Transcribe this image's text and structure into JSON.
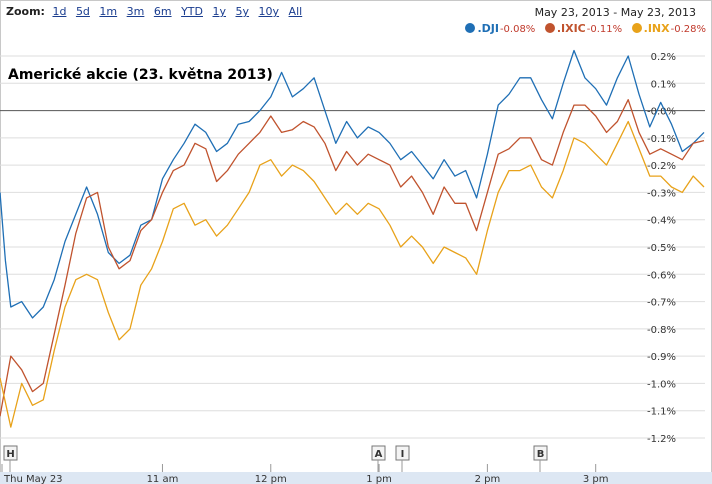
{
  "zoom": {
    "label": "Zoom:",
    "options": [
      "1d",
      "5d",
      "1m",
      "3m",
      "6m",
      "YTD",
      "1y",
      "5y",
      "10y",
      "All"
    ]
  },
  "date_range": "May 23, 2013  -  May 23, 2013",
  "legend": [
    {
      "symbol": ".DJI",
      "change": "-0.08%",
      "color": "#1f6fb5"
    },
    {
      "symbol": ".IXIC",
      "change": "-0.11%",
      "color": "#c0532e"
    },
    {
      "symbol": ".INX",
      "change": "-0.28%",
      "color": "#e8a21a"
    }
  ],
  "markers": [
    "H",
    "A",
    "I",
    "B"
  ],
  "chart_data": {
    "type": "line",
    "title": "Americké akcie (23. května 2013)",
    "x_tick_labels": [
      "Thu May 23",
      "11 am",
      "12 pm",
      "1 pm",
      "2 pm",
      "3 pm"
    ],
    "x_tick_hours": [
      10.0,
      11.0,
      12.0,
      13.0,
      14.0,
      15.0
    ],
    "x_range": [
      9.5,
      16.0
    ],
    "y_tick_labels": [
      "0.2%",
      "0.1%",
      "-0.0%",
      "-0.1%",
      "-0.2%",
      "-0.3%",
      "-0.4%",
      "-0.5%",
      "-0.6%",
      "-0.7%",
      "-0.8%",
      "-0.9%",
      "-1.0%",
      "-1.1%",
      "-1.2%"
    ],
    "y_ticks": [
      0.2,
      0.1,
      0.0,
      -0.1,
      -0.2,
      -0.3,
      -0.4,
      -0.5,
      -0.6,
      -0.7,
      -0.8,
      -0.9,
      -1.0,
      -1.1,
      -1.2
    ],
    "ylim": [
      -1.25,
      0.28
    ],
    "grid": true,
    "legend_position": "top-right",
    "series": [
      {
        "name": ".DJI",
        "color": "#1f6fb5",
        "points": [
          [
            9.5,
            -0.3
          ],
          [
            9.55,
            -0.55
          ],
          [
            9.6,
            -0.72
          ],
          [
            9.7,
            -0.7
          ],
          [
            9.8,
            -0.76
          ],
          [
            9.9,
            -0.72
          ],
          [
            10.0,
            -0.62
          ],
          [
            10.1,
            -0.48
          ],
          [
            10.2,
            -0.38
          ],
          [
            10.3,
            -0.28
          ],
          [
            10.4,
            -0.38
          ],
          [
            10.5,
            -0.52
          ],
          [
            10.6,
            -0.56
          ],
          [
            10.7,
            -0.53
          ],
          [
            10.8,
            -0.42
          ],
          [
            10.9,
            -0.4
          ],
          [
            11.0,
            -0.25
          ],
          [
            11.1,
            -0.18
          ],
          [
            11.2,
            -0.12
          ],
          [
            11.3,
            -0.05
          ],
          [
            11.4,
            -0.08
          ],
          [
            11.5,
            -0.15
          ],
          [
            11.6,
            -0.12
          ],
          [
            11.7,
            -0.05
          ],
          [
            11.8,
            -0.04
          ],
          [
            11.9,
            0.0
          ],
          [
            12.0,
            0.05
          ],
          [
            12.1,
            0.14
          ],
          [
            12.2,
            0.05
          ],
          [
            12.3,
            0.08
          ],
          [
            12.4,
            0.12
          ],
          [
            12.5,
            0.0
          ],
          [
            12.6,
            -0.12
          ],
          [
            12.7,
            -0.04
          ],
          [
            12.8,
            -0.1
          ],
          [
            12.9,
            -0.06
          ],
          [
            13.0,
            -0.08
          ],
          [
            13.1,
            -0.12
          ],
          [
            13.2,
            -0.18
          ],
          [
            13.3,
            -0.15
          ],
          [
            13.4,
            -0.2
          ],
          [
            13.5,
            -0.25
          ],
          [
            13.6,
            -0.18
          ],
          [
            13.7,
            -0.24
          ],
          [
            13.8,
            -0.22
          ],
          [
            13.9,
            -0.32
          ],
          [
            14.0,
            -0.16
          ],
          [
            14.1,
            0.02
          ],
          [
            14.2,
            0.06
          ],
          [
            14.3,
            0.12
          ],
          [
            14.4,
            0.12
          ],
          [
            14.5,
            0.04
          ],
          [
            14.6,
            -0.03
          ],
          [
            14.7,
            0.1
          ],
          [
            14.8,
            0.22
          ],
          [
            14.9,
            0.12
          ],
          [
            15.0,
            0.08
          ],
          [
            15.1,
            0.02
          ],
          [
            15.2,
            0.12
          ],
          [
            15.3,
            0.2
          ],
          [
            15.4,
            0.06
          ],
          [
            15.5,
            -0.06
          ],
          [
            15.6,
            0.03
          ],
          [
            15.7,
            -0.05
          ],
          [
            15.8,
            -0.15
          ],
          [
            15.9,
            -0.12
          ],
          [
            16.0,
            -0.08
          ]
        ]
      },
      {
        "name": ".IXIC",
        "color": "#c0532e",
        "points": [
          [
            9.5,
            -1.12
          ],
          [
            9.6,
            -0.9
          ],
          [
            9.7,
            -0.95
          ],
          [
            9.8,
            -1.03
          ],
          [
            9.9,
            -1.0
          ],
          [
            10.0,
            -0.82
          ],
          [
            10.1,
            -0.64
          ],
          [
            10.2,
            -0.45
          ],
          [
            10.3,
            -0.32
          ],
          [
            10.4,
            -0.3
          ],
          [
            10.5,
            -0.5
          ],
          [
            10.6,
            -0.58
          ],
          [
            10.7,
            -0.55
          ],
          [
            10.8,
            -0.44
          ],
          [
            10.9,
            -0.4
          ],
          [
            11.0,
            -0.3
          ],
          [
            11.1,
            -0.22
          ],
          [
            11.2,
            -0.2
          ],
          [
            11.3,
            -0.12
          ],
          [
            11.4,
            -0.14
          ],
          [
            11.5,
            -0.26
          ],
          [
            11.6,
            -0.22
          ],
          [
            11.7,
            -0.16
          ],
          [
            11.8,
            -0.12
          ],
          [
            11.9,
            -0.08
          ],
          [
            12.0,
            -0.02
          ],
          [
            12.1,
            -0.08
          ],
          [
            12.2,
            -0.07
          ],
          [
            12.3,
            -0.04
          ],
          [
            12.4,
            -0.06
          ],
          [
            12.5,
            -0.12
          ],
          [
            12.6,
            -0.22
          ],
          [
            12.7,
            -0.15
          ],
          [
            12.8,
            -0.2
          ],
          [
            12.9,
            -0.16
          ],
          [
            13.0,
            -0.18
          ],
          [
            13.1,
            -0.2
          ],
          [
            13.2,
            -0.28
          ],
          [
            13.3,
            -0.24
          ],
          [
            13.4,
            -0.3
          ],
          [
            13.5,
            -0.38
          ],
          [
            13.6,
            -0.28
          ],
          [
            13.7,
            -0.34
          ],
          [
            13.8,
            -0.34
          ],
          [
            13.9,
            -0.44
          ],
          [
            14.0,
            -0.3
          ],
          [
            14.1,
            -0.16
          ],
          [
            14.2,
            -0.14
          ],
          [
            14.3,
            -0.1
          ],
          [
            14.4,
            -0.1
          ],
          [
            14.5,
            -0.18
          ],
          [
            14.6,
            -0.2
          ],
          [
            14.7,
            -0.08
          ],
          [
            14.8,
            0.02
          ],
          [
            14.9,
            0.02
          ],
          [
            15.0,
            -0.02
          ],
          [
            15.1,
            -0.08
          ],
          [
            15.2,
            -0.04
          ],
          [
            15.3,
            0.04
          ],
          [
            15.4,
            -0.08
          ],
          [
            15.5,
            -0.16
          ],
          [
            15.6,
            -0.14
          ],
          [
            15.7,
            -0.16
          ],
          [
            15.8,
            -0.18
          ],
          [
            15.9,
            -0.12
          ],
          [
            16.0,
            -0.11
          ]
        ]
      },
      {
        "name": ".INX",
        "color": "#e8a21a",
        "points": [
          [
            9.5,
            -0.98
          ],
          [
            9.6,
            -1.16
          ],
          [
            9.7,
            -1.0
          ],
          [
            9.8,
            -1.08
          ],
          [
            9.9,
            -1.06
          ],
          [
            10.0,
            -0.88
          ],
          [
            10.1,
            -0.72
          ],
          [
            10.2,
            -0.62
          ],
          [
            10.3,
            -0.6
          ],
          [
            10.4,
            -0.62
          ],
          [
            10.5,
            -0.74
          ],
          [
            10.6,
            -0.84
          ],
          [
            10.7,
            -0.8
          ],
          [
            10.8,
            -0.64
          ],
          [
            10.9,
            -0.58
          ],
          [
            11.0,
            -0.48
          ],
          [
            11.1,
            -0.36
          ],
          [
            11.2,
            -0.34
          ],
          [
            11.3,
            -0.42
          ],
          [
            11.4,
            -0.4
          ],
          [
            11.5,
            -0.46
          ],
          [
            11.6,
            -0.42
          ],
          [
            11.7,
            -0.36
          ],
          [
            11.8,
            -0.3
          ],
          [
            11.9,
            -0.2
          ],
          [
            12.0,
            -0.18
          ],
          [
            12.1,
            -0.24
          ],
          [
            12.2,
            -0.2
          ],
          [
            12.3,
            -0.22
          ],
          [
            12.4,
            -0.26
          ],
          [
            12.5,
            -0.32
          ],
          [
            12.6,
            -0.38
          ],
          [
            12.7,
            -0.34
          ],
          [
            12.8,
            -0.38
          ],
          [
            12.9,
            -0.34
          ],
          [
            13.0,
            -0.36
          ],
          [
            13.1,
            -0.42
          ],
          [
            13.2,
            -0.5
          ],
          [
            13.3,
            -0.46
          ],
          [
            13.4,
            -0.5
          ],
          [
            13.5,
            -0.56
          ],
          [
            13.6,
            -0.5
          ],
          [
            13.7,
            -0.52
          ],
          [
            13.8,
            -0.54
          ],
          [
            13.9,
            -0.6
          ],
          [
            14.0,
            -0.44
          ],
          [
            14.1,
            -0.3
          ],
          [
            14.2,
            -0.22
          ],
          [
            14.3,
            -0.22
          ],
          [
            14.4,
            -0.2
          ],
          [
            14.5,
            -0.28
          ],
          [
            14.6,
            -0.32
          ],
          [
            14.7,
            -0.22
          ],
          [
            14.8,
            -0.1
          ],
          [
            14.9,
            -0.12
          ],
          [
            15.0,
            -0.16
          ],
          [
            15.1,
            -0.2
          ],
          [
            15.2,
            -0.12
          ],
          [
            15.3,
            -0.04
          ],
          [
            15.4,
            -0.14
          ],
          [
            15.5,
            -0.24
          ],
          [
            15.6,
            -0.24
          ],
          [
            15.7,
            -0.28
          ],
          [
            15.8,
            -0.3
          ],
          [
            15.9,
            -0.24
          ],
          [
            16.0,
            -0.28
          ]
        ]
      }
    ]
  }
}
